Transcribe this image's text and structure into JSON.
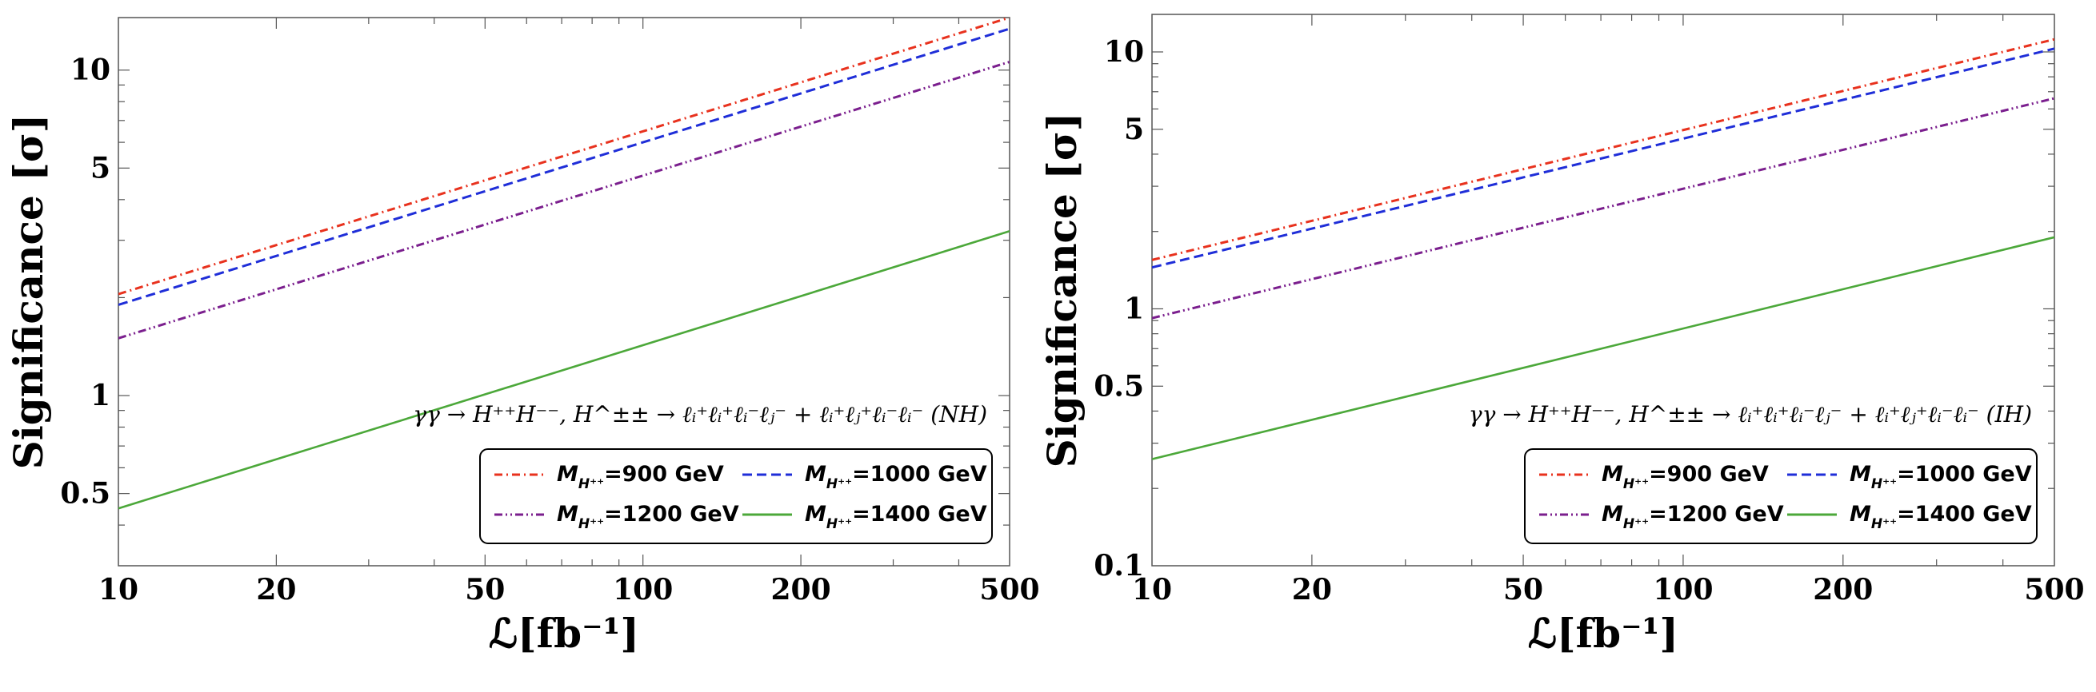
{
  "chart_data": [
    {
      "type": "line",
      "id": "left",
      "xlabel": "ℒ[fb⁻¹]",
      "ylabel": "Significance [σ]",
      "xscale": "log",
      "yscale": "log",
      "xlim": [
        10,
        500
      ],
      "ylim": [
        0.3,
        14.5
      ],
      "xticks": [
        10,
        20,
        50,
        100,
        200,
        500
      ],
      "xtick_labels": [
        "10",
        "20",
        "50",
        "100",
        "200",
        "500"
      ],
      "yticks": [
        0.5,
        1,
        5,
        10
      ],
      "ytick_labels": [
        "0.5",
        "1",
        "5",
        "10"
      ],
      "annotation": "γγ → H⁺⁺H⁻⁻, H^±± → ℓᵢ⁺ℓᵢ⁺ℓᵢ⁻ℓⱼ⁻ + ℓᵢ⁺ℓⱼ⁺ℓᵢ⁻ℓᵢ⁻ (NH)",
      "legend_position": "bottom-right",
      "series": [
        {
          "name": "M_H⁺⁺=900 GeV",
          "mass": "900",
          "color": "#e8321e",
          "dash": "dashdot",
          "x": [
            10,
            500
          ],
          "y": [
            2.05,
            14.5
          ]
        },
        {
          "name": "M_H⁺⁺=1000 GeV",
          "mass": "1000",
          "color": "#1f2ed8",
          "dash": "dashed",
          "x": [
            10,
            500
          ],
          "y": [
            1.9,
            13.4
          ]
        },
        {
          "name": "M_H⁺⁺=1200 GeV",
          "mass": "1200",
          "color": "#7b1f8e",
          "dash": "dashdotdot",
          "x": [
            10,
            500
          ],
          "y": [
            1.5,
            10.6
          ]
        },
        {
          "name": "M_H⁺⁺=1400 GeV",
          "mass": "1400",
          "color": "#4ca83a",
          "dash": "solid",
          "x": [
            10,
            500
          ],
          "y": [
            0.45,
            3.2
          ]
        }
      ]
    },
    {
      "type": "line",
      "id": "right",
      "xlabel": "ℒ[fb⁻¹]",
      "ylabel": "Significance [σ]",
      "xscale": "log",
      "yscale": "log",
      "xlim": [
        10,
        500
      ],
      "ylim": [
        0.1,
        14
      ],
      "xticks": [
        10,
        20,
        50,
        100,
        200,
        500
      ],
      "xtick_labels": [
        "10",
        "20",
        "50",
        "100",
        "200",
        "500"
      ],
      "yticks": [
        0.1,
        0.5,
        1,
        5,
        10
      ],
      "ytick_labels": [
        "0.1",
        "0.5",
        "1",
        "5",
        "10"
      ],
      "annotation": "γγ → H⁺⁺H⁻⁻, H^±± → ℓᵢ⁺ℓᵢ⁺ℓᵢ⁻ℓⱼ⁻ + ℓᵢ⁺ℓⱼ⁺ℓᵢ⁻ℓᵢ⁻ (IH)",
      "legend_position": "bottom-right",
      "series": [
        {
          "name": "M_H⁺⁺=900 GeV",
          "mass": "900",
          "color": "#e8321e",
          "dash": "dashdot",
          "x": [
            10,
            500
          ],
          "y": [
            1.55,
            11.2
          ]
        },
        {
          "name": "M_H⁺⁺=1000 GeV",
          "mass": "1000",
          "color": "#1f2ed8",
          "dash": "dashed",
          "x": [
            10,
            500
          ],
          "y": [
            1.45,
            10.3
          ]
        },
        {
          "name": "M_H⁺⁺=1200 GeV",
          "mass": "1200",
          "color": "#7b1f8e",
          "dash": "dashdotdot",
          "x": [
            10,
            500
          ],
          "y": [
            0.92,
            6.6
          ]
        },
        {
          "name": "M_H⁺⁺=1400 GeV",
          "mass": "1400",
          "color": "#4ca83a",
          "dash": "solid",
          "x": [
            10,
            500
          ],
          "y": [
            0.26,
            1.9
          ]
        }
      ]
    }
  ]
}
